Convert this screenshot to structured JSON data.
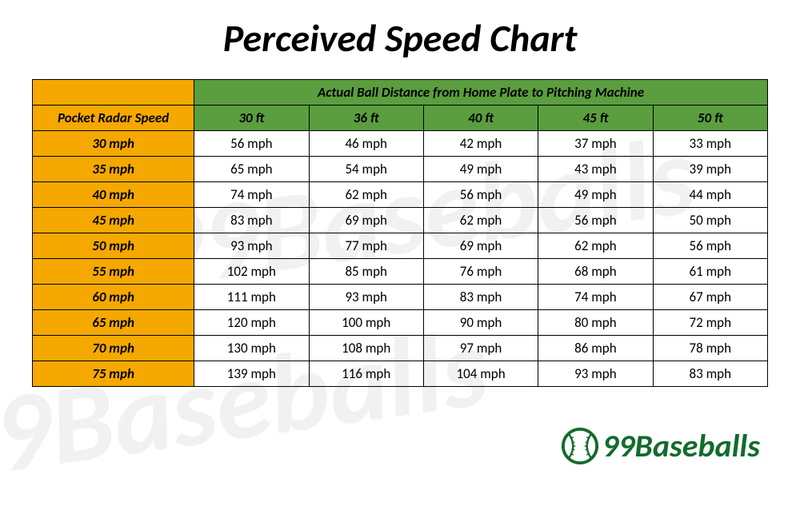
{
  "title": "Perceived Speed Chart",
  "watermark_text": "99Baseballs",
  "brand": "99Baseballs",
  "table": {
    "top_header": "Actual Ball Distance from Home Plate to Pitching Machine",
    "row_header": "Pocket Radar Speed",
    "columns": [
      "30 ft",
      "36 ft",
      "40 ft",
      "45 ft",
      "50 ft"
    ],
    "rows": [
      {
        "label": "30 mph",
        "cells": [
          "56 mph",
          "46 mph",
          "42 mph",
          "37 mph",
          "33 mph"
        ]
      },
      {
        "label": "35 mph",
        "cells": [
          "65 mph",
          "54 mph",
          "49 mph",
          "43 mph",
          "39 mph"
        ]
      },
      {
        "label": "40 mph",
        "cells": [
          "74 mph",
          "62 mph",
          "56 mph",
          "49 mph",
          "44 mph"
        ]
      },
      {
        "label": "45 mph",
        "cells": [
          "83 mph",
          "69 mph",
          "62 mph",
          "56 mph",
          "50 mph"
        ]
      },
      {
        "label": "50 mph",
        "cells": [
          "93 mph",
          "77 mph",
          "69 mph",
          "62 mph",
          "56 mph"
        ]
      },
      {
        "label": "55 mph",
        "cells": [
          "102 mph",
          "85 mph",
          "76 mph",
          "68 mph",
          "61 mph"
        ]
      },
      {
        "label": "60 mph",
        "cells": [
          "111 mph",
          "93 mph",
          "83 mph",
          "74 mph",
          "67 mph"
        ]
      },
      {
        "label": "65 mph",
        "cells": [
          "120 mph",
          "100 mph",
          "90 mph",
          "80 mph",
          "72 mph"
        ]
      },
      {
        "label": "70 mph",
        "cells": [
          "130 mph",
          "108 mph",
          "97 mph",
          "86 mph",
          "78 mph"
        ]
      },
      {
        "label": "75 mph",
        "cells": [
          "139 mph",
          "116 mph",
          "104  mph",
          "93 mph",
          "83 mph"
        ]
      }
    ]
  },
  "colors": {
    "header_green": "#5a9e3f",
    "label_orange": "#f5a800",
    "border": "#000000",
    "brand_green": "#136b2d",
    "background": "#ffffff",
    "watermark": "rgba(200,200,200,0.25)"
  },
  "typography": {
    "title_fontsize": 48,
    "cell_fontsize": 17,
    "brand_fontsize": 40,
    "italic": true
  }
}
